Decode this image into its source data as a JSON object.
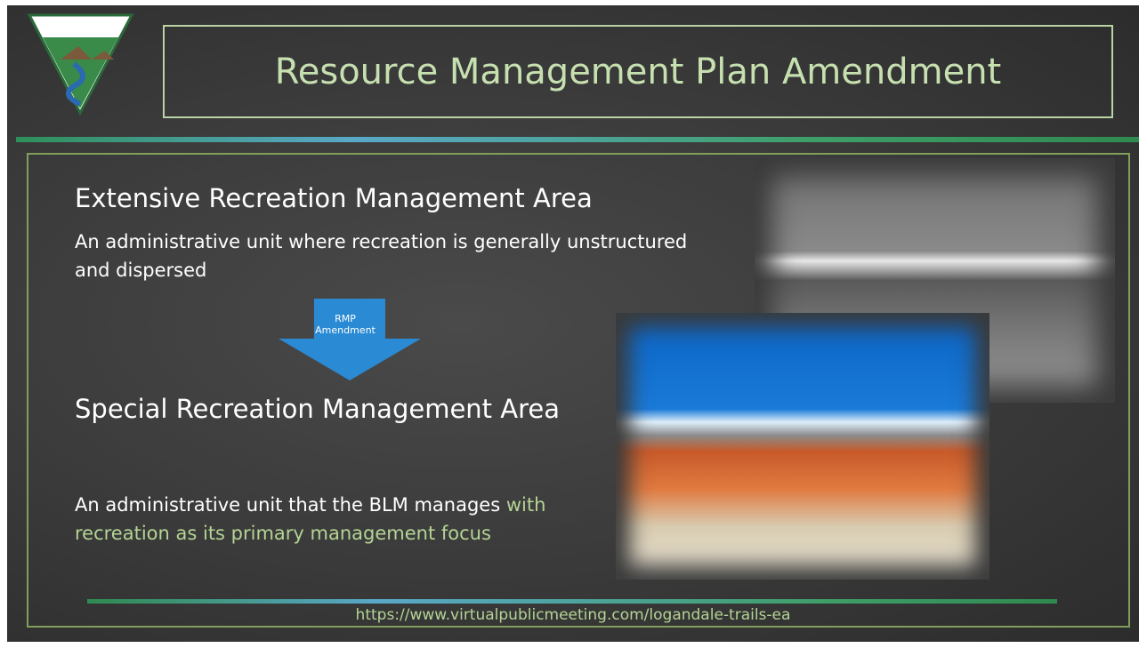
{
  "header": {
    "title": "Resource Management Plan Amendment"
  },
  "sections": [
    {
      "heading": "Extensive Recreation Management Area",
      "description": [
        "An administrative unit where recreation is generally unstructured and dispersed"
      ]
    },
    {
      "heading": "Special Recreation Management Area",
      "description": [
        "An administrative unit that the BLM manages",
        "with recreation as its primary management focus"
      ]
    }
  ],
  "arrow": {
    "label": [
      "RMP",
      "Amendment"
    ]
  },
  "footer": {
    "url": "https://www.virtualpublicmeeting.com/logandale-trails-ea"
  }
}
